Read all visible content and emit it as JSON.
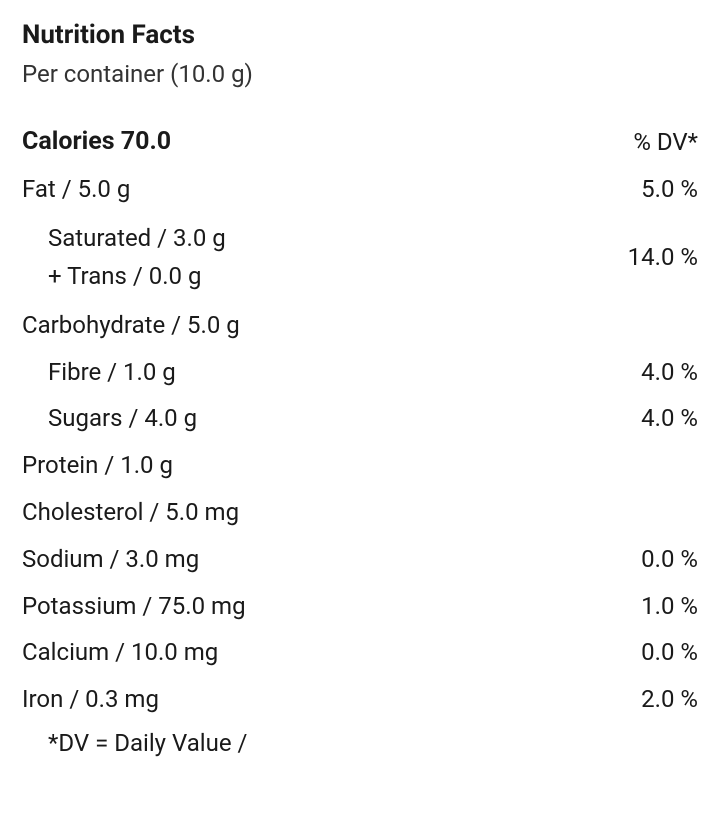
{
  "title": "Nutrition Facts",
  "serving": "Per container (10.0 g)",
  "caloriesLabel": "Calories 70.0",
  "dvHeader": "% DV*",
  "rows": {
    "fat": {
      "label": "Fat / 5.0 g",
      "value": "5.0 %"
    },
    "satTrans": {
      "saturated": "Saturated / 3.0 g",
      "trans": "+ Trans / 0.0 g",
      "value": "14.0 %"
    },
    "carb": {
      "label": "Carbohydrate / 5.0 g",
      "value": ""
    },
    "fibre": {
      "label": "Fibre / 1.0 g",
      "value": "4.0 %"
    },
    "sugars": {
      "label": "Sugars / 4.0 g",
      "value": "4.0 %"
    },
    "protein": {
      "label": "Protein / 1.0 g",
      "value": ""
    },
    "cholesterol": {
      "label": "Cholesterol / 5.0 mg",
      "value": ""
    },
    "sodium": {
      "label": "Sodium / 3.0 mg",
      "value": "0.0 %"
    },
    "potassium": {
      "label": "Potassium / 75.0 mg",
      "value": "1.0 %"
    },
    "calcium": {
      "label": "Calcium / 10.0 mg",
      "value": "0.0 %"
    },
    "iron": {
      "label": "Iron / 0.3 mg",
      "value": "2.0 %"
    }
  },
  "footnote": "*DV = Daily Value /"
}
